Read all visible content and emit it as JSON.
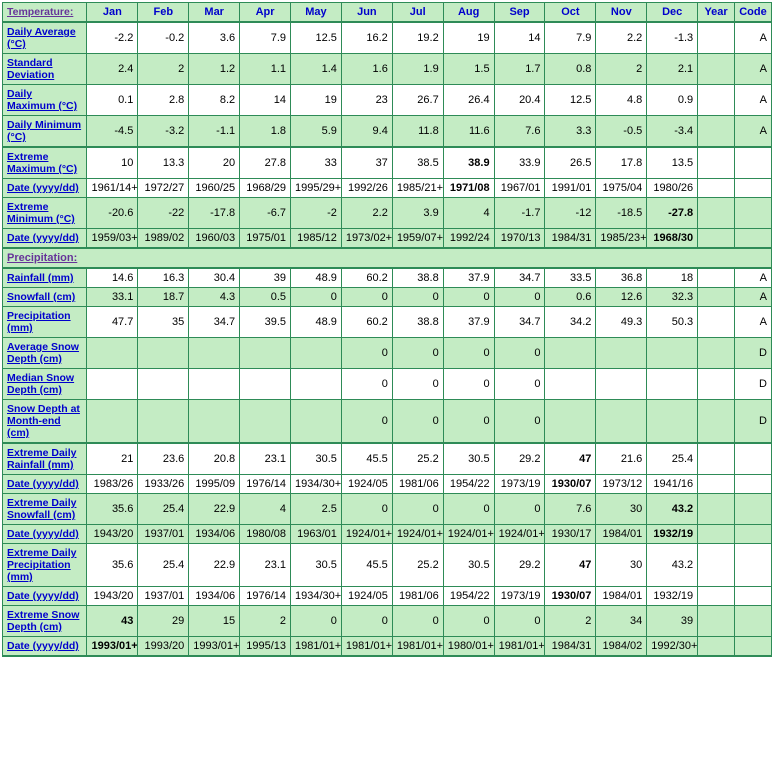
{
  "headers": {
    "tempLabel": "Temperature:",
    "precipLabel": "Precipitation:",
    "months": [
      "Jan",
      "Feb",
      "Mar",
      "Apr",
      "May",
      "Jun",
      "Jul",
      "Aug",
      "Sep",
      "Oct",
      "Nov",
      "Dec"
    ],
    "year": "Year",
    "code": "Code"
  },
  "rows": [
    {
      "label": "Daily Average (°C)",
      "vals": [
        "-2.2",
        "-0.2",
        "3.6",
        "7.9",
        "12.5",
        "16.2",
        "19.2",
        "19",
        "14",
        "7.9",
        "2.2",
        "-1.3"
      ],
      "year": "",
      "code": "A",
      "shaded": false,
      "link": true
    },
    {
      "label": "Standard Deviation",
      "vals": [
        "2.4",
        "2",
        "1.2",
        "1.1",
        "1.4",
        "1.6",
        "1.9",
        "1.5",
        "1.7",
        "0.8",
        "2",
        "2.1"
      ],
      "year": "",
      "code": "A",
      "shaded": true,
      "link": true
    },
    {
      "label": "Daily Maximum (°C)",
      "vals": [
        "0.1",
        "2.8",
        "8.2",
        "14",
        "19",
        "23",
        "26.7",
        "26.4",
        "20.4",
        "12.5",
        "4.8",
        "0.9"
      ],
      "year": "",
      "code": "A",
      "shaded": false,
      "link": true
    },
    {
      "label": "Daily Minimum (°C)",
      "vals": [
        "-4.5",
        "-3.2",
        "-1.1",
        "1.8",
        "5.9",
        "9.4",
        "11.8",
        "11.6",
        "7.6",
        "3.3",
        "-0.5",
        "-3.4"
      ],
      "year": "",
      "code": "A",
      "shaded": true,
      "link": true,
      "thickBottom": true
    },
    {
      "label": "Extreme Maximum (°C)",
      "vals": [
        "10",
        "13.3",
        "20",
        "27.8",
        "33",
        "37",
        "38.5",
        "38.9",
        "33.9",
        "26.5",
        "17.8",
        "13.5"
      ],
      "year": "",
      "code": "",
      "shaded": false,
      "link": true,
      "boldIdx": [
        7
      ]
    },
    {
      "label": "Date (yyyy/dd)",
      "vals": [
        "1961/14+",
        "1972/27",
        "1960/25",
        "1968/29",
        "1995/29+",
        "1992/26",
        "1985/21+",
        "1971/08",
        "1967/01",
        "1991/01",
        "1975/04",
        "1980/26"
      ],
      "year": "",
      "code": "",
      "shaded": false,
      "link": true,
      "boldIdx": [
        7
      ]
    },
    {
      "label": "Extreme Minimum (°C)",
      "vals": [
        "-20.6",
        "-22",
        "-17.8",
        "-6.7",
        "-2",
        "2.2",
        "3.9",
        "4",
        "-1.7",
        "-12",
        "-18.5",
        "-27.8"
      ],
      "year": "",
      "code": "",
      "shaded": true,
      "link": true,
      "boldIdx": [
        11
      ]
    },
    {
      "label": "Date (yyyy/dd)",
      "vals": [
        "1959/03+",
        "1989/02",
        "1960/03",
        "1975/01",
        "1985/12",
        "1973/02+",
        "1959/07+",
        "1992/24",
        "1970/13",
        "1984/31",
        "1985/23+",
        "1968/30"
      ],
      "year": "",
      "code": "",
      "shaded": true,
      "link": true,
      "boldIdx": [
        11
      ],
      "thickBottom": true
    },
    {
      "section": true,
      "label": "Precipitation:"
    },
    {
      "label": "Rainfall (mm)",
      "vals": [
        "14.6",
        "16.3",
        "30.4",
        "39",
        "48.9",
        "60.2",
        "38.8",
        "37.9",
        "34.7",
        "33.5",
        "36.8",
        "18"
      ],
      "year": "",
      "code": "A",
      "shaded": false,
      "link": true
    },
    {
      "label": "Snowfall (cm)",
      "vals": [
        "33.1",
        "18.7",
        "4.3",
        "0.5",
        "0",
        "0",
        "0",
        "0",
        "0",
        "0.6",
        "12.6",
        "32.3"
      ],
      "year": "",
      "code": "A",
      "shaded": true,
      "link": true
    },
    {
      "label": "Precipitation (mm)",
      "vals": [
        "47.7",
        "35",
        "34.7",
        "39.5",
        "48.9",
        "60.2",
        "38.8",
        "37.9",
        "34.7",
        "34.2",
        "49.3",
        "50.3"
      ],
      "year": "",
      "code": "A",
      "shaded": false,
      "link": true
    },
    {
      "label": "Average Snow Depth (cm)",
      "vals": [
        "",
        "",
        "",
        "",
        "",
        "0",
        "0",
        "0",
        "0",
        "",
        "",
        ""
      ],
      "year": "",
      "code": "D",
      "shaded": true,
      "link": true
    },
    {
      "label": "Median Snow Depth (cm)",
      "vals": [
        "",
        "",
        "",
        "",
        "",
        "0",
        "0",
        "0",
        "0",
        "",
        "",
        ""
      ],
      "year": "",
      "code": "D",
      "shaded": false,
      "link": true
    },
    {
      "label": "Snow Depth at Month-end (cm)",
      "vals": [
        "",
        "",
        "",
        "",
        "",
        "0",
        "0",
        "0",
        "0",
        "",
        "",
        ""
      ],
      "year": "",
      "code": "D",
      "shaded": true,
      "link": true,
      "thickBottom": true
    },
    {
      "label": "Extreme Daily Rainfall (mm)",
      "vals": [
        "21",
        "23.6",
        "20.8",
        "23.1",
        "30.5",
        "45.5",
        "25.2",
        "30.5",
        "29.2",
        "47",
        "21.6",
        "25.4"
      ],
      "year": "",
      "code": "",
      "shaded": false,
      "link": true,
      "boldIdx": [
        9
      ]
    },
    {
      "label": "Date (yyyy/dd)",
      "vals": [
        "1983/26",
        "1933/26",
        "1995/09",
        "1976/14",
        "1934/30+",
        "1924/05",
        "1981/06",
        "1954/22",
        "1973/19",
        "1930/07",
        "1973/12",
        "1941/16"
      ],
      "year": "",
      "code": "",
      "shaded": false,
      "link": true,
      "boldIdx": [
        9
      ]
    },
    {
      "label": "Extreme Daily Snowfall (cm)",
      "vals": [
        "35.6",
        "25.4",
        "22.9",
        "4",
        "2.5",
        "0",
        "0",
        "0",
        "0",
        "7.6",
        "30",
        "43.2"
      ],
      "year": "",
      "code": "",
      "shaded": true,
      "link": true,
      "boldIdx": [
        11
      ]
    },
    {
      "label": "Date (yyyy/dd)",
      "vals": [
        "1943/20",
        "1937/01",
        "1934/06",
        "1980/08",
        "1963/01",
        "1924/01+",
        "1924/01+",
        "1924/01+",
        "1924/01+",
        "1930/17",
        "1984/01",
        "1932/19"
      ],
      "year": "",
      "code": "",
      "shaded": true,
      "link": true,
      "boldIdx": [
        11
      ]
    },
    {
      "label": "Extreme Daily Precipitation (mm)",
      "vals": [
        "35.6",
        "25.4",
        "22.9",
        "23.1",
        "30.5",
        "45.5",
        "25.2",
        "30.5",
        "29.2",
        "47",
        "30",
        "43.2"
      ],
      "year": "",
      "code": "",
      "shaded": false,
      "link": true,
      "boldIdx": [
        9
      ]
    },
    {
      "label": "Date (yyyy/dd)",
      "vals": [
        "1943/20",
        "1937/01",
        "1934/06",
        "1976/14",
        "1934/30+",
        "1924/05",
        "1981/06",
        "1954/22",
        "1973/19",
        "1930/07",
        "1984/01",
        "1932/19"
      ],
      "year": "",
      "code": "",
      "shaded": false,
      "link": true,
      "boldIdx": [
        9
      ]
    },
    {
      "label": "Extreme Snow Depth (cm)",
      "vals": [
        "43",
        "29",
        "15",
        "2",
        "0",
        "0",
        "0",
        "0",
        "0",
        "2",
        "34",
        "39"
      ],
      "year": "",
      "code": "",
      "shaded": true,
      "link": true,
      "boldIdx": [
        0
      ]
    },
    {
      "label": "Date (yyyy/dd)",
      "vals": [
        "1993/01+",
        "1993/20",
        "1993/01+",
        "1995/13",
        "1981/01+",
        "1981/01+",
        "1981/01+",
        "1980/01+",
        "1981/01+",
        "1984/31",
        "1984/02",
        "1992/30+"
      ],
      "year": "",
      "code": "",
      "shaded": true,
      "link": true,
      "boldIdx": [
        0
      ],
      "thickBottom": true
    }
  ]
}
